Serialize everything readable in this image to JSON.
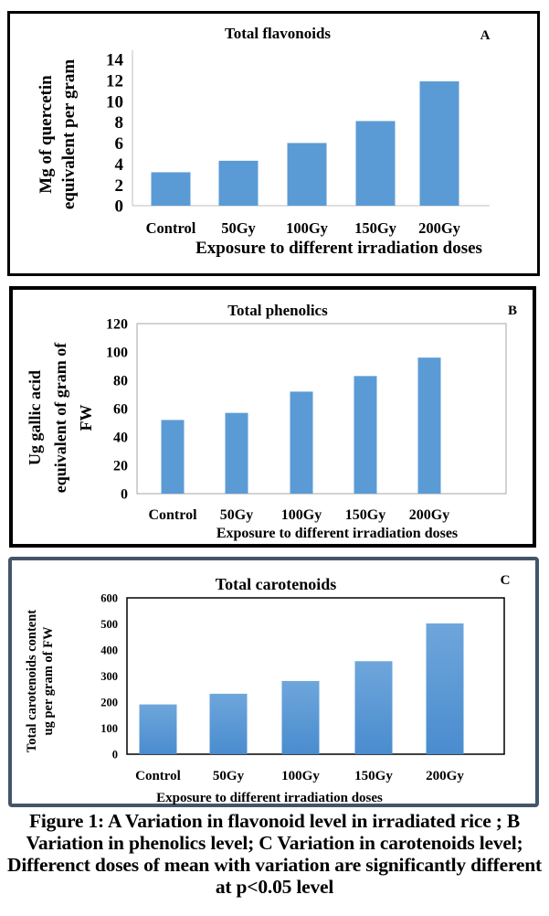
{
  "chart_data": [
    {
      "panel": "A",
      "type": "bar",
      "title": "Total flavonoids",
      "xlabel": "Exposure to different irradiation doses",
      "ylabel_lines": [
        "Mg of quercetin",
        "equivalent per gram"
      ],
      "ylabel": "Mg of quercetin equivalent per gram",
      "categories": [
        "Control",
        "50Gy",
        "100Gy",
        "150Gy",
        "200Gy"
      ],
      "values": [
        3.2,
        4.3,
        6.0,
        8.1,
        11.9
      ],
      "ylim": [
        0,
        14
      ],
      "yticks": [
        0,
        2,
        4,
        6,
        8,
        10,
        12,
        14
      ],
      "grid": false,
      "legend": "none",
      "bar_color": "#5b9bd5"
    },
    {
      "panel": "B",
      "type": "bar",
      "title": "Total phenolics",
      "xlabel": "Exposure to different irradiation doses",
      "ylabel_lines": [
        "Ug gallic acid",
        "equivalent of gram of",
        "FW"
      ],
      "ylabel": "Ug gallic acid equivalent of gram of FW",
      "categories": [
        "Control",
        "50Gy",
        "100Gy",
        "150Gy",
        "200Gy"
      ],
      "values": [
        52,
        57,
        72,
        83,
        96
      ],
      "ylim": [
        0,
        120
      ],
      "yticks": [
        0,
        20,
        40,
        60,
        80,
        100,
        120
      ],
      "grid": false,
      "legend": "none",
      "bar_color": "#5b9bd5"
    },
    {
      "panel": "C",
      "type": "bar",
      "title": "Total carotenoids",
      "xlabel": "Exposure to different irradiation doses",
      "ylabel_lines": [
        "Total carotenoids content",
        "ug per gram of  FW"
      ],
      "ylabel": "Total carotenoids content ug per gram of FW",
      "categories": [
        "Control",
        "50Gy",
        "100Gy",
        "150Gy",
        "200Gy"
      ],
      "values": [
        191,
        232,
        281,
        357,
        502
      ],
      "ylim": [
        0,
        600
      ],
      "yticks": [
        0,
        100,
        200,
        300,
        400,
        500,
        600
      ],
      "grid": false,
      "legend": "none",
      "bar_color": "#5b9bd5"
    }
  ],
  "caption": "Figure 1: A Variation in flavonoid level in irradiated rice ; B Variation in phenolics level; C Variation in carotenoids level; Differenct doses of mean with variation are significantly different at p<0.05 level"
}
